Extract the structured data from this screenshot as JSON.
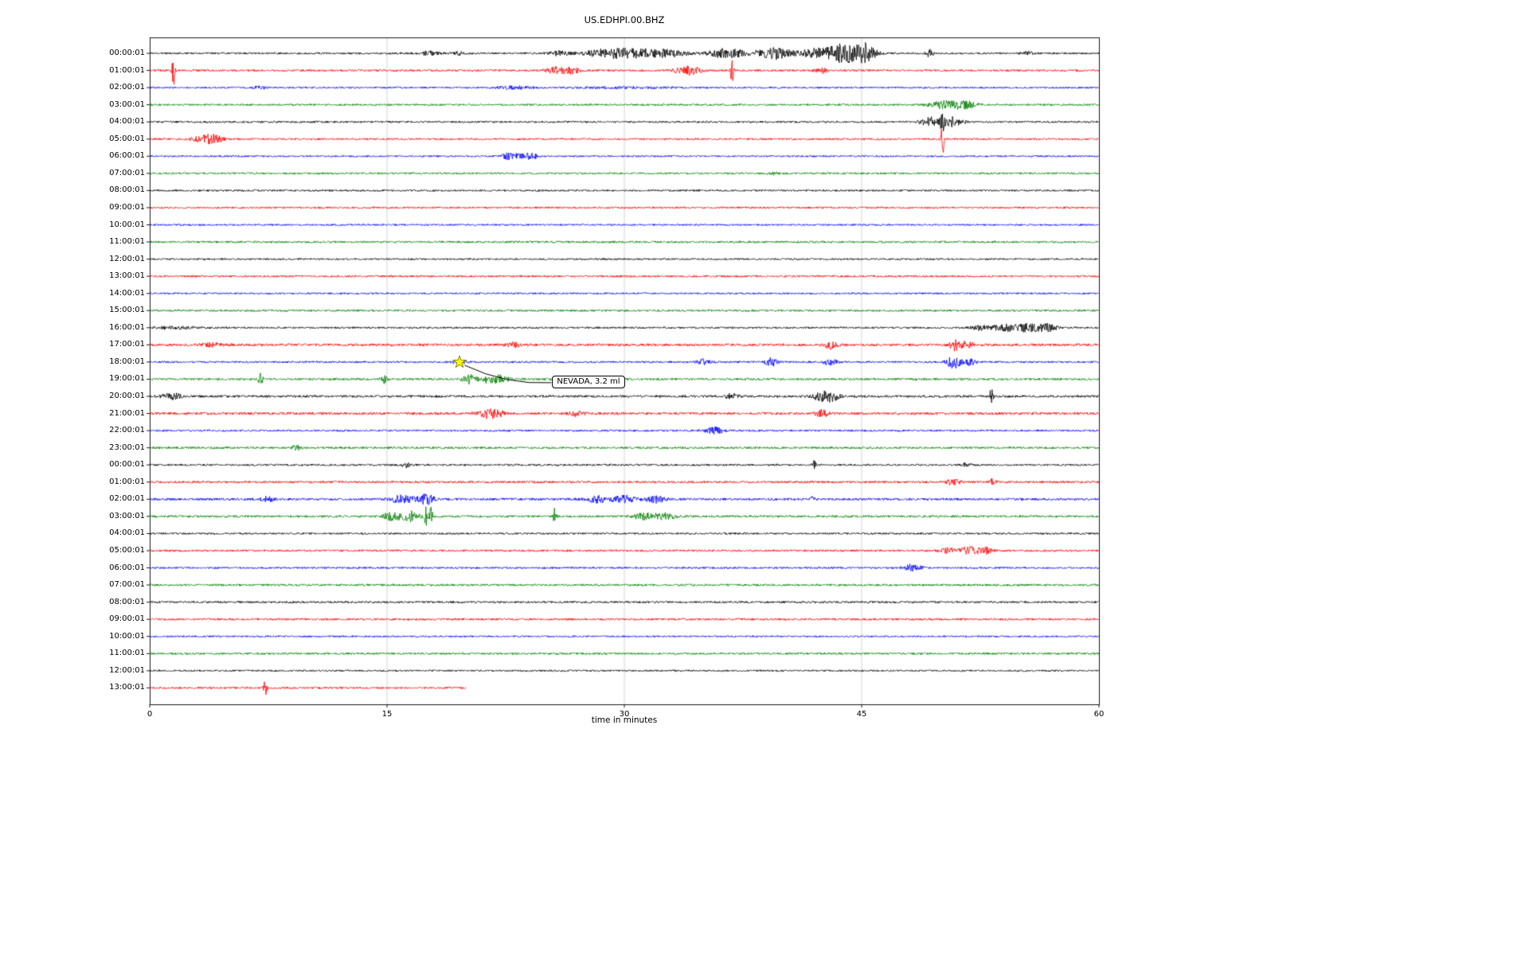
{
  "chart_data": {
    "type": "line",
    "subtype": "helicorder-seismogram",
    "title": "US.EDHPI.00.BHZ",
    "xlabel": "time in minutes",
    "xlim": [
      0,
      60
    ],
    "x_ticks": [
      "0",
      "15",
      "30",
      "45",
      "60"
    ],
    "x_tick_minutes": [
      0,
      15,
      30,
      45,
      60
    ],
    "grid": {
      "vertical_minutes": [
        15,
        30,
        45
      ],
      "color": "#c8c8c8",
      "border_color": "#000000"
    },
    "trace_color_cycle": [
      "#000000",
      "#ff0000",
      "#0000ff",
      "#008000"
    ],
    "background_color": "#ffffff",
    "annotation": {
      "text": "NEVADA, 3.2 ml",
      "row_index": 18,
      "minute": 19.6,
      "marker": "star",
      "marker_fill": "#ffff00",
      "marker_edge": "#808000"
    },
    "rows": [
      {
        "label": "00:00:01",
        "color": "#000000",
        "noise": 1.2,
        "end": 60,
        "events": [
          [
            17.7,
            0.4,
            2.5
          ],
          [
            19.5,
            0.3,
            2
          ],
          [
            26,
            0.5,
            3
          ],
          [
            29,
            0.9,
            6
          ],
          [
            31,
            1,
            5
          ],
          [
            33,
            0.7,
            4
          ],
          [
            36.5,
            0.8,
            6
          ],
          [
            39.5,
            0.8,
            7
          ],
          [
            42,
            0.6,
            5
          ],
          [
            44,
            0.9,
            12
          ],
          [
            45.3,
            0.4,
            8
          ],
          [
            49.3,
            0.15,
            5
          ],
          [
            55.5,
            0.3,
            2
          ]
        ]
      },
      {
        "label": "01:00:01",
        "color": "#ff0000",
        "noise": 1.3,
        "end": 60,
        "events": [
          [
            1.5,
            0.07,
            20
          ],
          [
            25.8,
            0.5,
            4
          ],
          [
            26.8,
            0.3,
            3
          ],
          [
            34,
            0.6,
            5
          ],
          [
            36.8,
            0.07,
            22
          ],
          [
            42.5,
            0.3,
            3
          ]
        ]
      },
      {
        "label": "02:00:01",
        "color": "#0000ff",
        "noise": 1.1,
        "end": 60,
        "events": [
          [
            7,
            0.4,
            1.5
          ],
          [
            23,
            0.8,
            1.8
          ],
          [
            30,
            2,
            1
          ]
        ]
      },
      {
        "label": "03:00:01",
        "color": "#008000",
        "noise": 1.2,
        "end": 60,
        "events": [
          [
            50.3,
            0.7,
            5
          ],
          [
            51.5,
            0.5,
            4
          ]
        ]
      },
      {
        "label": "04:00:01",
        "color": "#000000",
        "noise": 1.2,
        "end": 60,
        "events": [
          [
            49.3,
            0.4,
            6
          ],
          [
            50.1,
            0.1,
            18
          ],
          [
            50.8,
            0.4,
            6
          ]
        ]
      },
      {
        "label": "05:00:01",
        "color": "#ff0000",
        "noise": 1.2,
        "end": 60,
        "events": [
          [
            3.5,
            0.5,
            5
          ],
          [
            4.2,
            0.3,
            4
          ],
          [
            50.1,
            0.06,
            30
          ]
        ]
      },
      {
        "label": "06:00:01",
        "color": "#0000ff",
        "noise": 1.1,
        "end": 60,
        "events": [
          [
            22.8,
            0.4,
            4
          ],
          [
            24,
            0.4,
            3.5
          ]
        ]
      },
      {
        "label": "07:00:01",
        "color": "#008000",
        "noise": 1.2,
        "end": 60,
        "events": [
          [
            39.5,
            0.3,
            1.5
          ]
        ]
      },
      {
        "label": "08:00:01",
        "color": "#000000",
        "noise": 1.2,
        "end": 60,
        "events": []
      },
      {
        "label": "09:00:01",
        "color": "#ff0000",
        "noise": 1.2,
        "end": 60,
        "events": []
      },
      {
        "label": "10:00:01",
        "color": "#0000ff",
        "noise": 1.1,
        "end": 60,
        "events": []
      },
      {
        "label": "11:00:01",
        "color": "#008000",
        "noise": 1.3,
        "end": 60,
        "events": []
      },
      {
        "label": "12:00:01",
        "color": "#000000",
        "noise": 1.1,
        "end": 60,
        "events": []
      },
      {
        "label": "13:00:01",
        "color": "#ff0000",
        "noise": 1.2,
        "end": 60,
        "events": []
      },
      {
        "label": "14:00:01",
        "color": "#0000ff",
        "noise": 1.1,
        "end": 60,
        "events": []
      },
      {
        "label": "15:00:01",
        "color": "#008000",
        "noise": 1.3,
        "end": 60,
        "events": []
      },
      {
        "label": "16:00:01",
        "color": "#000000",
        "noise": 1.2,
        "end": 60,
        "events": [
          [
            1.5,
            1,
            1.5
          ],
          [
            52.5,
            0.4,
            3
          ],
          [
            54,
            0.5,
            4
          ],
          [
            55.5,
            0.6,
            5
          ],
          [
            56.8,
            0.4,
            4
          ]
        ]
      },
      {
        "label": "17:00:01",
        "color": "#ff0000",
        "noise": 1.6,
        "end": 60,
        "events": [
          [
            4,
            0.5,
            2
          ],
          [
            23,
            0.3,
            3
          ],
          [
            43,
            0.3,
            5
          ],
          [
            50.8,
            0.15,
            12
          ],
          [
            51.5,
            0.4,
            4
          ]
        ]
      },
      {
        "label": "18:00:01",
        "color": "#0000ff",
        "noise": 1.2,
        "end": 60,
        "events": [
          [
            19.6,
            0.3,
            3
          ],
          [
            35,
            0.3,
            4
          ],
          [
            39.3,
            0.25,
            5
          ],
          [
            43,
            0.3,
            4
          ],
          [
            50.8,
            0.3,
            8
          ],
          [
            51.8,
            0.3,
            4
          ]
        ]
      },
      {
        "label": "19:00:01",
        "color": "#008000",
        "noise": 1.4,
        "end": 60,
        "events": [
          [
            7,
            0.1,
            8
          ],
          [
            14.8,
            0.15,
            5
          ],
          [
            20.2,
            0.3,
            6
          ],
          [
            21.5,
            0.4,
            5
          ],
          [
            22.3,
            0.3,
            4
          ]
        ]
      },
      {
        "label": "20:00:01",
        "color": "#000000",
        "noise": 1.5,
        "end": 60,
        "events": [
          [
            1,
            0.2,
            4
          ],
          [
            1.6,
            0.3,
            3
          ],
          [
            36.8,
            0.3,
            3
          ],
          [
            42.5,
            0.4,
            5
          ],
          [
            43.2,
            0.3,
            5
          ],
          [
            53.2,
            0.1,
            8
          ]
        ]
      },
      {
        "label": "21:00:01",
        "color": "#ff0000",
        "noise": 1.6,
        "end": 60,
        "events": [
          [
            21.3,
            0.4,
            5
          ],
          [
            22,
            0.3,
            4
          ],
          [
            27,
            0.3,
            3
          ],
          [
            42.5,
            0.3,
            4
          ]
        ]
      },
      {
        "label": "22:00:01",
        "color": "#0000ff",
        "noise": 1.2,
        "end": 60,
        "events": [
          [
            35.7,
            0.4,
            4
          ]
        ]
      },
      {
        "label": "23:00:01",
        "color": "#008000",
        "noise": 1.4,
        "end": 60,
        "events": [
          [
            9.3,
            0.2,
            3
          ]
        ]
      },
      {
        "label": "00:00:01",
        "color": "#000000",
        "noise": 1.2,
        "end": 60,
        "events": [
          [
            16.2,
            0.2,
            3
          ],
          [
            42,
            0.07,
            6
          ],
          [
            51.6,
            0.2,
            2
          ]
        ]
      },
      {
        "label": "01:00:01",
        "color": "#ff0000",
        "noise": 1.4,
        "end": 60,
        "events": [
          [
            50.8,
            0.3,
            4
          ],
          [
            53.2,
            0.2,
            3
          ]
        ]
      },
      {
        "label": "02:00:01",
        "color": "#0000ff",
        "noise": 1.5,
        "end": 60,
        "events": [
          [
            7.4,
            0.3,
            3
          ],
          [
            16,
            0.5,
            5
          ],
          [
            17.5,
            0.4,
            6
          ],
          [
            28.3,
            0.5,
            4
          ],
          [
            30,
            0.5,
            4
          ],
          [
            32,
            0.4,
            4
          ],
          [
            41.9,
            0.08,
            5
          ]
        ]
      },
      {
        "label": "03:00:01",
        "color": "#008000",
        "noise": 1.4,
        "end": 60,
        "events": [
          [
            15.3,
            0.4,
            5
          ],
          [
            16.5,
            0.4,
            6
          ],
          [
            17.5,
            0.08,
            16
          ],
          [
            17.8,
            0.08,
            12
          ],
          [
            25.6,
            0.07,
            10
          ],
          [
            31.2,
            0.4,
            4
          ],
          [
            32.5,
            0.5,
            4
          ]
        ]
      },
      {
        "label": "04:00:01",
        "color": "#000000",
        "noise": 1.2,
        "end": 60,
        "events": []
      },
      {
        "label": "05:00:01",
        "color": "#ff0000",
        "noise": 1.3,
        "end": 60,
        "events": [
          [
            50.5,
            0.4,
            3
          ],
          [
            51.8,
            0.4,
            5
          ],
          [
            52.8,
            0.3,
            4
          ]
        ]
      },
      {
        "label": "06:00:01",
        "color": "#0000ff",
        "noise": 1.2,
        "end": 60,
        "events": [
          [
            48.2,
            0.4,
            4
          ]
        ]
      },
      {
        "label": "07:00:01",
        "color": "#008000",
        "noise": 1.3,
        "end": 60,
        "events": []
      },
      {
        "label": "08:00:01",
        "color": "#000000",
        "noise": 1.3,
        "end": 60,
        "events": []
      },
      {
        "label": "09:00:01",
        "color": "#ff0000",
        "noise": 1.3,
        "end": 60,
        "events": []
      },
      {
        "label": "10:00:01",
        "color": "#0000ff",
        "noise": 1.1,
        "end": 60,
        "events": []
      },
      {
        "label": "11:00:01",
        "color": "#008000",
        "noise": 1.3,
        "end": 60,
        "events": []
      },
      {
        "label": "12:00:01",
        "color": "#000000",
        "noise": 1.1,
        "end": 60,
        "events": []
      },
      {
        "label": "13:00:01",
        "color": "#ff0000",
        "noise": 1.3,
        "end": 20,
        "events": [
          [
            7.3,
            0.07,
            12
          ]
        ]
      }
    ]
  }
}
